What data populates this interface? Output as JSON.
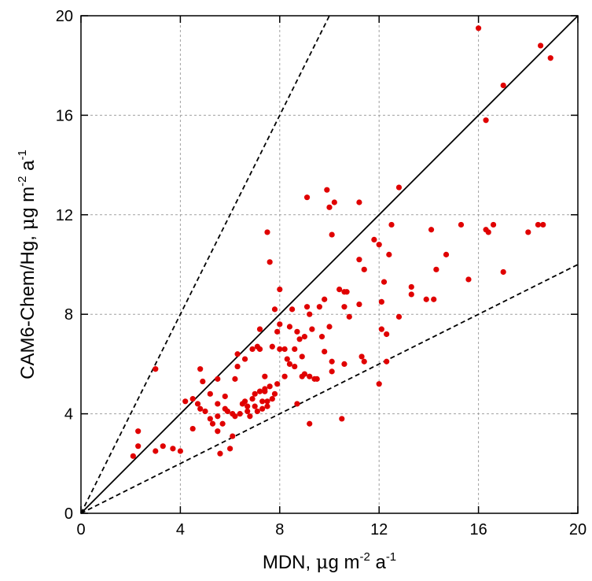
{
  "chart_data": {
    "type": "scatter",
    "xlabel": {
      "prefix": "MDN, ",
      "mu": "μ",
      "unit_pre": "g m",
      "exp1": "-2",
      "unit_mid": " a",
      "exp2": "-1"
    },
    "ylabel": {
      "prefix": "CAM6-Chem/Hg, ",
      "mu": "μ",
      "unit_pre": "g m",
      "exp1": "-2",
      "unit_mid": " a",
      "exp2": "-1"
    },
    "xlim": [
      0,
      20
    ],
    "ylim": [
      0,
      20
    ],
    "xticks": [
      "0",
      "4",
      "8",
      "12",
      "16",
      "20"
    ],
    "yticks": [
      "0",
      "4",
      "8",
      "12",
      "16",
      "20"
    ],
    "grid": true,
    "point_color": "#e00000",
    "reference_lines": [
      {
        "style": "solid",
        "slope": 1.0
      },
      {
        "style": "dashed",
        "slope": 2.0
      },
      {
        "style": "dashed",
        "slope": 0.5
      }
    ],
    "points": [
      [
        2.1,
        2.3
      ],
      [
        2.3,
        2.7
      ],
      [
        2.3,
        3.3
      ],
      [
        3.0,
        5.8
      ],
      [
        3.0,
        2.5
      ],
      [
        3.3,
        2.7
      ],
      [
        3.7,
        2.6
      ],
      [
        4.0,
        2.5
      ],
      [
        4.2,
        4.5
      ],
      [
        4.5,
        4.6
      ],
      [
        4.5,
        3.4
      ],
      [
        4.7,
        4.4
      ],
      [
        4.8,
        4.2
      ],
      [
        4.8,
        5.8
      ],
      [
        4.9,
        5.3
      ],
      [
        5.0,
        4.1
      ],
      [
        5.2,
        4.8
      ],
      [
        5.2,
        3.8
      ],
      [
        5.3,
        3.6
      ],
      [
        5.5,
        5.4
      ],
      [
        5.5,
        4.4
      ],
      [
        5.5,
        3.9
      ],
      [
        5.5,
        3.3
      ],
      [
        5.6,
        2.4
      ],
      [
        5.7,
        3.6
      ],
      [
        5.8,
        4.7
      ],
      [
        5.8,
        4.2
      ],
      [
        5.9,
        4.1
      ],
      [
        6.0,
        2.6
      ],
      [
        6.1,
        3.1
      ],
      [
        6.1,
        4.0
      ],
      [
        6.2,
        5.4
      ],
      [
        6.2,
        3.9
      ],
      [
        6.3,
        6.4
      ],
      [
        6.3,
        5.9
      ],
      [
        6.4,
        4.0
      ],
      [
        6.5,
        4.4
      ],
      [
        6.6,
        6.2
      ],
      [
        6.6,
        4.5
      ],
      [
        6.7,
        4.1
      ],
      [
        6.7,
        4.3
      ],
      [
        6.8,
        3.9
      ],
      [
        6.9,
        6.6
      ],
      [
        6.9,
        4.6
      ],
      [
        7.0,
        4.8
      ],
      [
        7.0,
        4.3
      ],
      [
        7.1,
        4.1
      ],
      [
        7.1,
        6.7
      ],
      [
        7.2,
        7.4
      ],
      [
        7.2,
        6.6
      ],
      [
        7.2,
        4.9
      ],
      [
        7.3,
        4.5
      ],
      [
        7.3,
        4.2
      ],
      [
        7.4,
        5.5
      ],
      [
        7.4,
        5.0
      ],
      [
        7.4,
        4.9
      ],
      [
        7.5,
        4.5
      ],
      [
        7.5,
        4.3
      ],
      [
        7.5,
        11.3
      ],
      [
        7.6,
        10.1
      ],
      [
        7.6,
        5.1
      ],
      [
        7.7,
        6.7
      ],
      [
        7.7,
        4.6
      ],
      [
        7.8,
        4.8
      ],
      [
        7.8,
        8.2
      ],
      [
        7.9,
        7.3
      ],
      [
        7.9,
        5.2
      ],
      [
        8.0,
        7.6
      ],
      [
        8.0,
        9.0
      ],
      [
        8.0,
        6.6
      ],
      [
        8.2,
        6.6
      ],
      [
        8.2,
        5.5
      ],
      [
        8.3,
        6.2
      ],
      [
        8.4,
        7.5
      ],
      [
        8.4,
        6.0
      ],
      [
        8.5,
        8.2
      ],
      [
        8.6,
        6.6
      ],
      [
        8.6,
        5.9
      ],
      [
        8.7,
        4.4
      ],
      [
        8.7,
        7.3
      ],
      [
        8.8,
        7.0
      ],
      [
        8.9,
        6.3
      ],
      [
        8.9,
        5.5
      ],
      [
        9.0,
        7.1
      ],
      [
        9.0,
        5.6
      ],
      [
        9.1,
        12.7
      ],
      [
        9.1,
        8.3
      ],
      [
        9.2,
        8.0
      ],
      [
        9.2,
        5.5
      ],
      [
        9.2,
        3.6
      ],
      [
        9.3,
        7.4
      ],
      [
        9.4,
        5.4
      ],
      [
        9.5,
        5.4
      ],
      [
        9.6,
        8.3
      ],
      [
        9.7,
        7.1
      ],
      [
        9.8,
        8.6
      ],
      [
        9.8,
        6.5
      ],
      [
        9.9,
        13.0
      ],
      [
        10.0,
        12.3
      ],
      [
        10.0,
        7.5
      ],
      [
        10.1,
        11.2
      ],
      [
        10.1,
        6.1
      ],
      [
        10.1,
        5.7
      ],
      [
        10.2,
        12.5
      ],
      [
        10.4,
        9.0
      ],
      [
        10.5,
        3.8
      ],
      [
        10.6,
        6.0
      ],
      [
        10.6,
        8.3
      ],
      [
        10.6,
        8.9
      ],
      [
        10.7,
        8.9
      ],
      [
        10.8,
        7.9
      ],
      [
        11.2,
        10.2
      ],
      [
        11.2,
        8.4
      ],
      [
        11.2,
        12.5
      ],
      [
        11.3,
        6.3
      ],
      [
        11.4,
        6.1
      ],
      [
        11.4,
        9.8
      ],
      [
        11.8,
        11.0
      ],
      [
        12.0,
        10.8
      ],
      [
        12.0,
        5.2
      ],
      [
        12.1,
        7.4
      ],
      [
        12.1,
        8.5
      ],
      [
        12.2,
        9.3
      ],
      [
        12.3,
        6.1
      ],
      [
        12.3,
        7.2
      ],
      [
        12.4,
        10.4
      ],
      [
        12.5,
        11.6
      ],
      [
        12.8,
        13.1
      ],
      [
        12.8,
        7.9
      ],
      [
        13.3,
        9.1
      ],
      [
        13.3,
        8.8
      ],
      [
        13.9,
        8.6
      ],
      [
        14.1,
        11.4
      ],
      [
        14.2,
        8.6
      ],
      [
        14.3,
        9.8
      ],
      [
        14.7,
        10.4
      ],
      [
        15.3,
        11.6
      ],
      [
        15.6,
        9.4
      ],
      [
        16.0,
        19.5
      ],
      [
        16.3,
        11.4
      ],
      [
        16.3,
        15.8
      ],
      [
        16.4,
        11.3
      ],
      [
        16.6,
        11.6
      ],
      [
        17.0,
        17.2
      ],
      [
        17.0,
        9.7
      ],
      [
        18.0,
        11.3
      ],
      [
        18.4,
        11.6
      ],
      [
        18.5,
        18.8
      ],
      [
        18.6,
        11.6
      ],
      [
        18.9,
        18.3
      ]
    ]
  }
}
